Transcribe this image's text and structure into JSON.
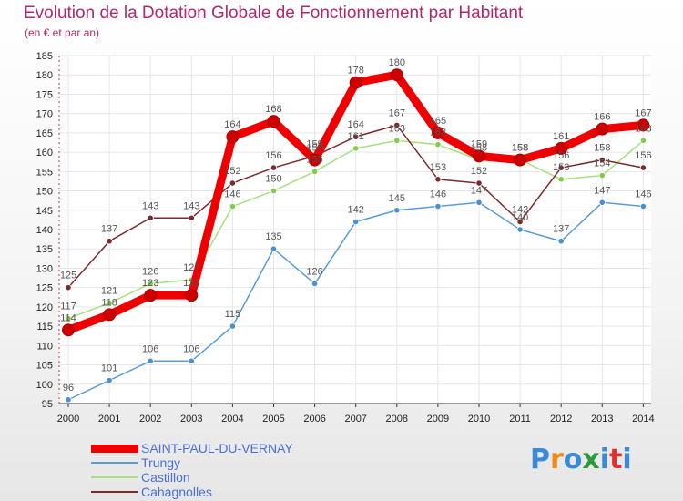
{
  "chart_data": {
    "type": "line",
    "title": "Evolution de la Dotation Globale de Fonctionnement par Habitant",
    "subtitle": "(en € et par an)",
    "xlabel": "",
    "ylabel": "",
    "ylim": [
      95,
      185
    ],
    "ystep": 5,
    "grid": true,
    "legend": "bottom-left",
    "categories": [
      "2000",
      "2001",
      "2002",
      "2003",
      "2004",
      "2005",
      "2006",
      "2007",
      "2008",
      "2009",
      "2010",
      "2011",
      "2012",
      "2013",
      "2014"
    ],
    "series": [
      {
        "name": "Trungy",
        "color": "#5b9bd5",
        "marker": "#4a90d0",
        "values": [
          96,
          101,
          106,
          106,
          115,
          135,
          126,
          142,
          145,
          146,
          147,
          140,
          137,
          147,
          146
        ]
      },
      {
        "name": "Castillon",
        "color": "#a6e080",
        "marker": "#82cc4a",
        "values": [
          117,
          121,
          126,
          127,
          146,
          150,
          155,
          161,
          163,
          162,
          158,
          158,
          153,
          154,
          163
        ]
      },
      {
        "name": "Cahagnolles",
        "color": "#7b2b2b",
        "marker": "#7b2b2b",
        "values": [
          125,
          137,
          143,
          143,
          152,
          156,
          159,
          164,
          167,
          153,
          152,
          142,
          156,
          158,
          156
        ]
      },
      {
        "name": "SAINT-PAUL-DU-VERNAY",
        "color": "#ee0000",
        "marker": "#cc0000",
        "values": [
          114,
          118,
          123,
          123,
          164,
          168,
          158,
          178,
          180,
          165,
          159,
          158,
          161,
          166,
          167
        ]
      }
    ],
    "legend_order": [
      "SAINT-PAUL-DU-VERNAY",
      "Trungy",
      "Castillon",
      "Cahagnolles"
    ]
  },
  "logo": {
    "text": "Proxiti",
    "letters": [
      "P",
      "r",
      "o",
      "x",
      "i",
      "t",
      "i"
    ],
    "colors": [
      "#3a8ad6",
      "#f08a1c",
      "#3a8ad6",
      "#2a9a3a",
      "#3a8ad6",
      "#e03030",
      "#3a8ad6"
    ]
  }
}
